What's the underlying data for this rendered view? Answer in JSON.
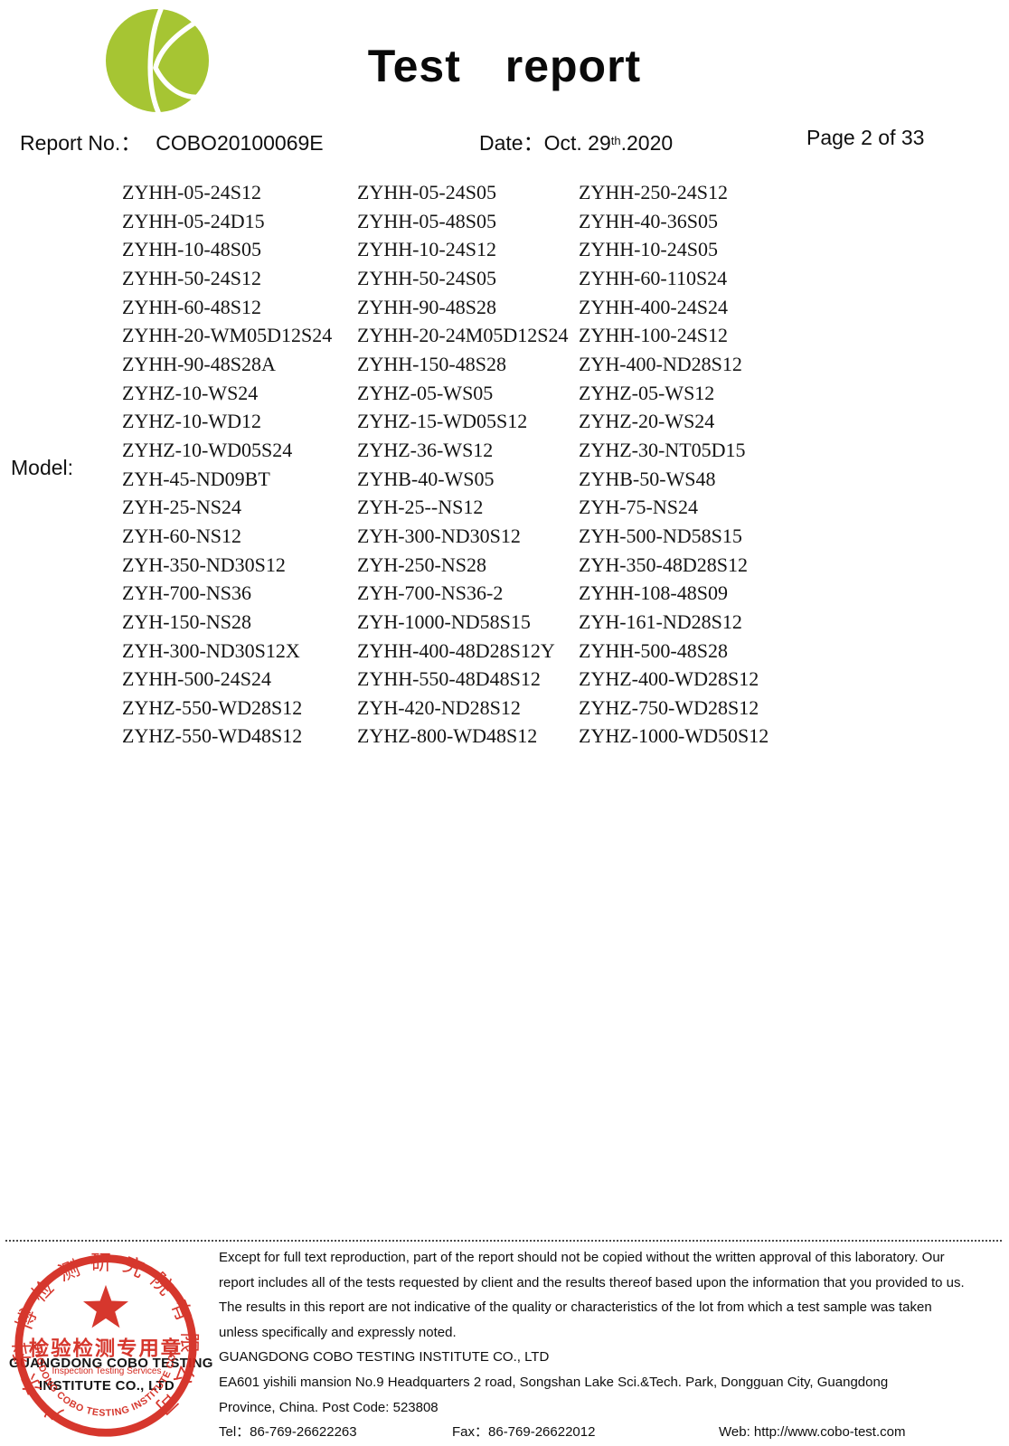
{
  "header": {
    "title": "Test report",
    "report_no_label": "Report No.：",
    "report_no_value": "COBO20100069E",
    "date_label": "Date：",
    "date_day": "Oct. 29",
    "date_sup": "th",
    "date_year": ".2020",
    "page": "Page 2 of 33"
  },
  "model": {
    "label": "Model:",
    "rows": [
      [
        "ZYHH-05-24S12",
        "ZYHH-05-24S05",
        "ZYHH-250-24S12"
      ],
      [
        "ZYHH-05-24D15",
        "ZYHH-05-48S05",
        "ZYHH-40-36S05"
      ],
      [
        "ZYHH-10-48S05",
        "ZYHH-10-24S12",
        "ZYHH-10-24S05"
      ],
      [
        "ZYHH-50-24S12",
        "ZYHH-50-24S05",
        "ZYHH-60-110S24"
      ],
      [
        "ZYHH-60-48S12",
        "ZYHH-90-48S28",
        "ZYHH-400-24S24"
      ],
      [
        "ZYHH-20-WM05D12S24",
        "ZYHH-20-24M05D12S24",
        "ZYHH-100-24S12"
      ],
      [
        "ZYHH-90-48S28A",
        "ZYHH-150-48S28",
        "ZYH-400-ND28S12"
      ],
      [
        "ZYHZ-10-WS24",
        "ZYHZ-05-WS05",
        "ZYHZ-05-WS12"
      ],
      [
        "ZYHZ-10-WD12",
        "ZYHZ-15-WD05S12",
        "ZYHZ-20-WS24"
      ],
      [
        "ZYHZ-10-WD05S24",
        "ZYHZ-36-WS12",
        "ZYHZ-30-NT05D15"
      ],
      [
        "ZYH-45-ND09BT",
        "ZYHB-40-WS05",
        "ZYHB-50-WS48"
      ],
      [
        "ZYH-25-NS24",
        "ZYH-25--NS12",
        "ZYH-75-NS24"
      ],
      [
        "ZYH-60-NS12",
        "ZYH-300-ND30S12",
        "ZYH-500-ND58S15"
      ],
      [
        "ZYH-350-ND30S12",
        "ZYH-250-NS28",
        "ZYH-350-48D28S12"
      ],
      [
        "ZYH-700-NS36",
        "ZYH-700-NS36-2",
        "ZYHH-108-48S09"
      ],
      [
        "ZYH-150-NS28",
        "ZYH-1000-ND58S15",
        "ZYH-161-ND28S12"
      ],
      [
        "ZYH-300-ND30S12X",
        "ZYHH-400-48D28S12Y",
        "ZYHH-500-48S28"
      ],
      [
        "ZYHH-500-24S24",
        "ZYHH-550-48D48S12",
        "ZYHZ-400-WD28S12"
      ],
      [
        "ZYHZ-550-WD28S12",
        "ZYH-420-ND28S12",
        "ZYHZ-750-WD28S12"
      ],
      [
        "ZYHZ-550-WD48S12",
        "ZYHZ-800-WD48S12",
        "ZYHZ-1000-WD50S12"
      ]
    ]
  },
  "footer": {
    "disclaimer": [
      "Except for full text reproduction, part of the report should not be copied without the written approval of this laboratory. Our",
      "report includes all of the tests requested by client and the results thereof based upon the information that you provided to us.",
      "The results in this report are not indicative of the quality or characteristics of the lot from which a test sample was taken",
      "unless specifically and expressly noted."
    ],
    "company": "GUANGDONG COBO TESTING INSTITUTE CO., LTD",
    "address_line1": "EA601 yishili mansion No.9 Headquarters 2 road, Songshan Lake Sci.&Tech. Park, Dongguan City, Guangdong",
    "address_line2": "Province, China. Post Code: 523808",
    "tel": "Tel：86-769-26622263",
    "fax": "Fax：86-769-26622012",
    "web": "Web: http://www.cobo-test.com"
  },
  "stamp": {
    "arc_top": "广东科博检测研究院有限公司",
    "center_line": "检验检测专用章",
    "small_line": "Inspection Testing Services",
    "arc_bottom": "GUANGDONG COBO TESTING INSTITUTE CO.,LTD",
    "black_line1": "GUANGDONG COBO TESTING",
    "black_line2": "INSTITUTE CO., LTD"
  },
  "colors": {
    "stamp_red": "#d3281e",
    "logo_green": "#a6c533"
  }
}
